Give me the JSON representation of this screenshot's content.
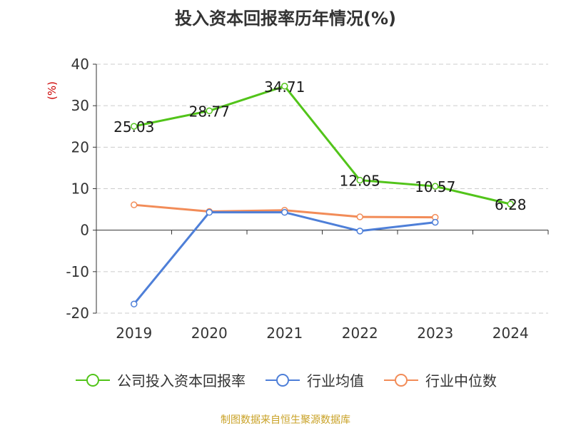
{
  "chart_data": {
    "type": "line",
    "title": "投入资本回报率历年情况(%)",
    "ylabel": "(%)",
    "categories": [
      "2019",
      "2020",
      "2021",
      "2022",
      "2023",
      "2024"
    ],
    "ylim": [
      -20,
      40
    ],
    "yticks": [
      40,
      30,
      20,
      10,
      0,
      -10,
      -20
    ],
    "grid": true,
    "legend_position": "bottom",
    "series": [
      {
        "name": "公司投入资本回报率",
        "color": "#52c41a",
        "values": [
          25.03,
          28.77,
          34.71,
          12.05,
          10.57,
          6.28
        ],
        "labels": [
          "25.03",
          "28.77",
          "34.71",
          "12.05",
          "10.57",
          "6.28"
        ]
      },
      {
        "name": "行业均值",
        "color": "#4e7fd8",
        "values": [
          -17.8,
          4.3,
          4.3,
          -0.2,
          1.9,
          null
        ]
      },
      {
        "name": "行业中位数",
        "color": "#f28c58",
        "values": [
          6.1,
          4.5,
          4.8,
          3.2,
          3.1,
          null
        ]
      }
    ]
  },
  "source_note": "制图数据来自恒生聚源数据库"
}
